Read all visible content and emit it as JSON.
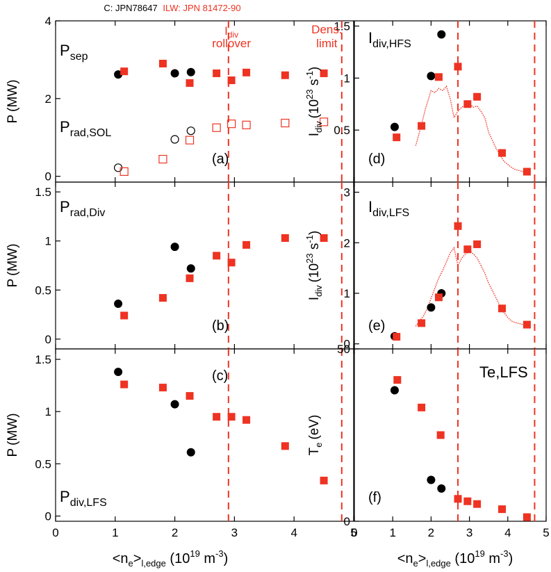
{
  "header": {
    "carbon_label": "C: JPN78647",
    "ilw_label": "ILW: JPN 81472-90"
  },
  "colors": {
    "carbon": "#000000",
    "ilw": "#ee3322",
    "axes": "#000000"
  },
  "markers": {
    "carbon": "filled-circle",
    "ilw": "filled-square",
    "carbon_secondary": "open-circle",
    "ilw_secondary": "open-square"
  },
  "vlines": {
    "rollover_label_main": "I",
    "rollover_label_sub": "div",
    "rollover_label_line2": "rollover",
    "density_label_line1": "Dens.",
    "density_label_line2": "limit"
  },
  "chart_data": [
    {
      "type": "scatter",
      "panel_label": "(a)",
      "ylabel_main": "P",
      "ylabel_unit": "(MW)",
      "xlim": [
        0,
        5
      ],
      "ylim": [
        -0.15,
        4.0
      ],
      "yticks": [
        0,
        2,
        4
      ],
      "vlines": [
        2.9,
        4.8
      ],
      "annotations": [
        {
          "main": "P",
          "sub": "sep"
        },
        {
          "main": "P",
          "sub": "rad,SOL"
        }
      ],
      "series": [
        {
          "group": "carbon",
          "marker": "filled-circle",
          "x": [
            1.05,
            2.0,
            2.27
          ],
          "y": [
            2.62,
            2.65,
            2.68
          ]
        },
        {
          "group": "ilw",
          "marker": "filled-square",
          "x": [
            1.15,
            1.8,
            2.25,
            2.7,
            2.95,
            3.2,
            3.85,
            4.5
          ],
          "y": [
            2.7,
            2.9,
            2.4,
            2.65,
            2.47,
            2.67,
            2.6,
            2.65
          ]
        },
        {
          "group": "carbon",
          "marker": "open-circle",
          "x": [
            1.05,
            2.0,
            2.27
          ],
          "y": [
            0.22,
            0.95,
            1.17
          ]
        },
        {
          "group": "ilw",
          "marker": "open-square",
          "x": [
            1.15,
            1.8,
            2.25,
            2.7,
            2.95,
            3.2,
            3.85,
            4.5
          ],
          "y": [
            0.12,
            0.44,
            0.93,
            1.25,
            1.35,
            1.32,
            1.37,
            1.4
          ]
        }
      ]
    },
    {
      "type": "scatter",
      "panel_label": "(b)",
      "ylabel_main": "P",
      "ylabel_unit": "(MW)",
      "xlim": [
        0,
        5
      ],
      "ylim": [
        -0.1,
        1.6
      ],
      "yticks": [
        0,
        0.5,
        1.0,
        1.5
      ],
      "vlines": [
        2.9,
        4.8
      ],
      "annotations": [
        {
          "main": "P",
          "sub": "rad,Div"
        }
      ],
      "series": [
        {
          "group": "carbon",
          "marker": "filled-circle",
          "x": [
            1.05,
            2.0,
            2.27
          ],
          "y": [
            0.36,
            0.94,
            0.72
          ]
        },
        {
          "group": "ilw",
          "marker": "filled-square",
          "x": [
            1.15,
            1.8,
            2.25,
            2.7,
            2.95,
            3.2,
            3.85,
            4.5
          ],
          "y": [
            0.24,
            0.42,
            0.62,
            0.85,
            0.78,
            0.96,
            1.03,
            1.03
          ]
        }
      ]
    },
    {
      "type": "scatter",
      "panel_label": "(c)",
      "ylabel_main": "P",
      "ylabel_unit": "(MW)",
      "xlim": [
        0,
        5
      ],
      "ylim": [
        -0.05,
        1.6
      ],
      "yticks": [
        0,
        0.5,
        1.0,
        1.5
      ],
      "xticks": [
        0,
        1,
        2,
        3,
        4,
        5
      ],
      "vlines": [
        2.9,
        4.8
      ],
      "annotations": [
        {
          "main": "P",
          "sub": "div,LFS"
        }
      ],
      "series": [
        {
          "group": "carbon",
          "marker": "filled-circle",
          "x": [
            1.05,
            2.0,
            2.27
          ],
          "y": [
            1.38,
            1.07,
            0.61
          ]
        },
        {
          "group": "ilw",
          "marker": "filled-square",
          "x": [
            1.15,
            1.8,
            2.25,
            2.7,
            2.95,
            3.2,
            3.85,
            4.5
          ],
          "y": [
            1.26,
            1.23,
            1.15,
            0.95,
            0.95,
            0.92,
            0.67,
            0.34
          ]
        }
      ]
    },
    {
      "type": "scatter",
      "panel_label": "(d)",
      "ylabel_main": "I",
      "ylabel_sub": "div",
      "ylabel_unit_pre": "(10",
      "ylabel_unit_exp": "23",
      "ylabel_unit_mid": " s",
      "ylabel_unit_exp2": "-1",
      "ylabel_unit_post": ")",
      "xlim": [
        0,
        5
      ],
      "ylim": [
        0,
        1.55
      ],
      "yticks": [
        0.5,
        1.0,
        1.5
      ],
      "vlines": [
        2.7,
        4.7
      ],
      "annotations": [
        {
          "main": "I",
          "sub": "div,HFS"
        }
      ],
      "series": [
        {
          "group": "carbon",
          "marker": "filled-circle",
          "x": [
            1.05,
            2.0,
            2.27
          ],
          "y": [
            0.53,
            1.02,
            1.42
          ]
        },
        {
          "group": "ilw",
          "marker": "filled-square",
          "x": [
            1.1,
            1.75,
            2.2,
            2.7,
            2.95,
            3.2,
            3.85,
            4.5
          ],
          "y": [
            0.43,
            0.54,
            1.01,
            1.11,
            0.75,
            0.82,
            0.28,
            0.1
          ]
        }
      ],
      "trace": {
        "group": "ilw",
        "x": [
          1.6,
          1.75,
          1.85,
          1.95,
          2.0,
          2.1,
          2.2,
          2.3,
          2.4,
          2.5,
          2.6,
          2.7,
          2.8,
          2.9,
          3.0,
          3.1,
          3.2,
          3.3,
          3.4,
          3.5,
          3.6,
          3.7,
          3.8,
          3.9,
          4.0,
          4.1,
          4.2,
          4.3,
          4.4,
          4.55
        ],
        "y": [
          0.35,
          0.55,
          0.7,
          0.82,
          0.88,
          0.86,
          0.9,
          0.88,
          0.92,
          0.8,
          0.62,
          0.68,
          0.72,
          0.74,
          0.75,
          0.72,
          0.73,
          0.68,
          0.62,
          0.48,
          0.4,
          0.32,
          0.26,
          0.2,
          0.17,
          0.14,
          0.12,
          0.11,
          0.1,
          0.08
        ]
      }
    },
    {
      "type": "scatter",
      "panel_label": "(e)",
      "ylabel_main": "I",
      "ylabel_sub": "div",
      "ylabel_unit_pre": "(10",
      "ylabel_unit_exp": "23",
      "ylabel_unit_mid": " s",
      "ylabel_unit_exp2": "-1",
      "ylabel_unit_post": ")",
      "xlim": [
        0,
        5
      ],
      "ylim": [
        -0.1,
        3.2
      ],
      "yticks": [
        0,
        1,
        2,
        3
      ],
      "vlines": [
        2.7,
        4.7
      ],
      "annotations": [
        {
          "main": "I",
          "sub": "div,LFS"
        }
      ],
      "series": [
        {
          "group": "carbon",
          "marker": "filled-circle",
          "x": [
            1.05,
            2.0,
            2.27
          ],
          "y": [
            0.15,
            0.72,
            1.0
          ]
        },
        {
          "group": "ilw",
          "marker": "filled-square",
          "x": [
            1.1,
            1.75,
            2.2,
            2.7,
            2.95,
            3.2,
            3.85,
            4.5
          ],
          "y": [
            0.14,
            0.41,
            0.92,
            2.33,
            1.87,
            1.97,
            0.7,
            0.38
          ]
        }
      ],
      "trace": {
        "group": "ilw",
        "x": [
          1.6,
          1.7,
          1.8,
          1.9,
          2.0,
          2.1,
          2.2,
          2.3,
          2.4,
          2.5,
          2.6,
          2.7,
          2.8,
          2.9,
          3.0,
          3.1,
          3.2,
          3.3,
          3.4,
          3.5,
          3.6,
          3.7,
          3.8,
          3.9,
          4.0,
          4.1,
          4.2,
          4.3,
          4.4,
          4.55
        ],
        "y": [
          0.35,
          0.45,
          0.55,
          0.7,
          0.9,
          1.1,
          1.3,
          1.45,
          1.62,
          1.8,
          1.9,
          1.55,
          1.7,
          1.78,
          1.85,
          1.78,
          1.7,
          1.55,
          1.4,
          1.2,
          1.05,
          0.9,
          0.75,
          0.62,
          0.52,
          0.45,
          0.42,
          0.4,
          0.38,
          0.36
        ]
      }
    },
    {
      "type": "scatter",
      "panel_label": "(f)",
      "ylabel_main": "T",
      "ylabel_sub": "e",
      "ylabel_unit": "(eV)",
      "xlim": [
        0,
        5
      ],
      "ylim": [
        0,
        50
      ],
      "yticks": [
        0,
        50
      ],
      "xticks": [
        0,
        1,
        2,
        3,
        4,
        5
      ],
      "vlines": [
        2.7,
        4.7
      ],
      "annotations": [
        {
          "main": "Te,LFS",
          "sub": ""
        }
      ],
      "series": [
        {
          "group": "carbon",
          "marker": "filled-circle",
          "x": [
            1.05,
            2.0,
            2.27
          ],
          "y": [
            38,
            12,
            9.5
          ]
        },
        {
          "group": "ilw",
          "marker": "filled-square",
          "x": [
            1.12,
            1.75,
            2.25,
            2.7,
            2.95,
            3.2,
            3.85,
            4.5
          ],
          "y": [
            41,
            33,
            25,
            6.5,
            5.8,
            5.0,
            3.5,
            1.2
          ]
        }
      ]
    }
  ],
  "xlabel": {
    "pre": "<n",
    "sub1": "e",
    "mid": ">",
    "sub2": "l,edge",
    "unit_pre": " (10",
    "unit_exp": "19",
    "unit_mid": " m",
    "unit_exp2": "-3",
    "unit_post": ")"
  },
  "xtick_labels": {
    "left": [
      "0",
      "1",
      "2",
      "3",
      "4",
      "5"
    ],
    "right": [
      "0",
      "1",
      "2",
      "3",
      "4",
      "5"
    ]
  }
}
